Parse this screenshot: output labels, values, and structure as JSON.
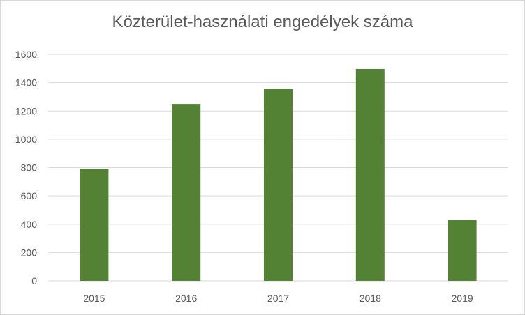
{
  "chart_data": {
    "type": "bar",
    "title": "Közterület-használati engedélyek száma",
    "categories": [
      "2015",
      "2016",
      "2017",
      "2018",
      "2019"
    ],
    "values": [
      790,
      1250,
      1355,
      1497,
      430
    ],
    "xlabel": "",
    "ylabel": "",
    "ylim": [
      0,
      1600
    ],
    "yticks": [
      0,
      200,
      400,
      600,
      800,
      1000,
      1200,
      1400,
      1600
    ],
    "grid": true,
    "legend": "none",
    "bar_color": "#548235",
    "grid_color": "#d9d9d9"
  }
}
